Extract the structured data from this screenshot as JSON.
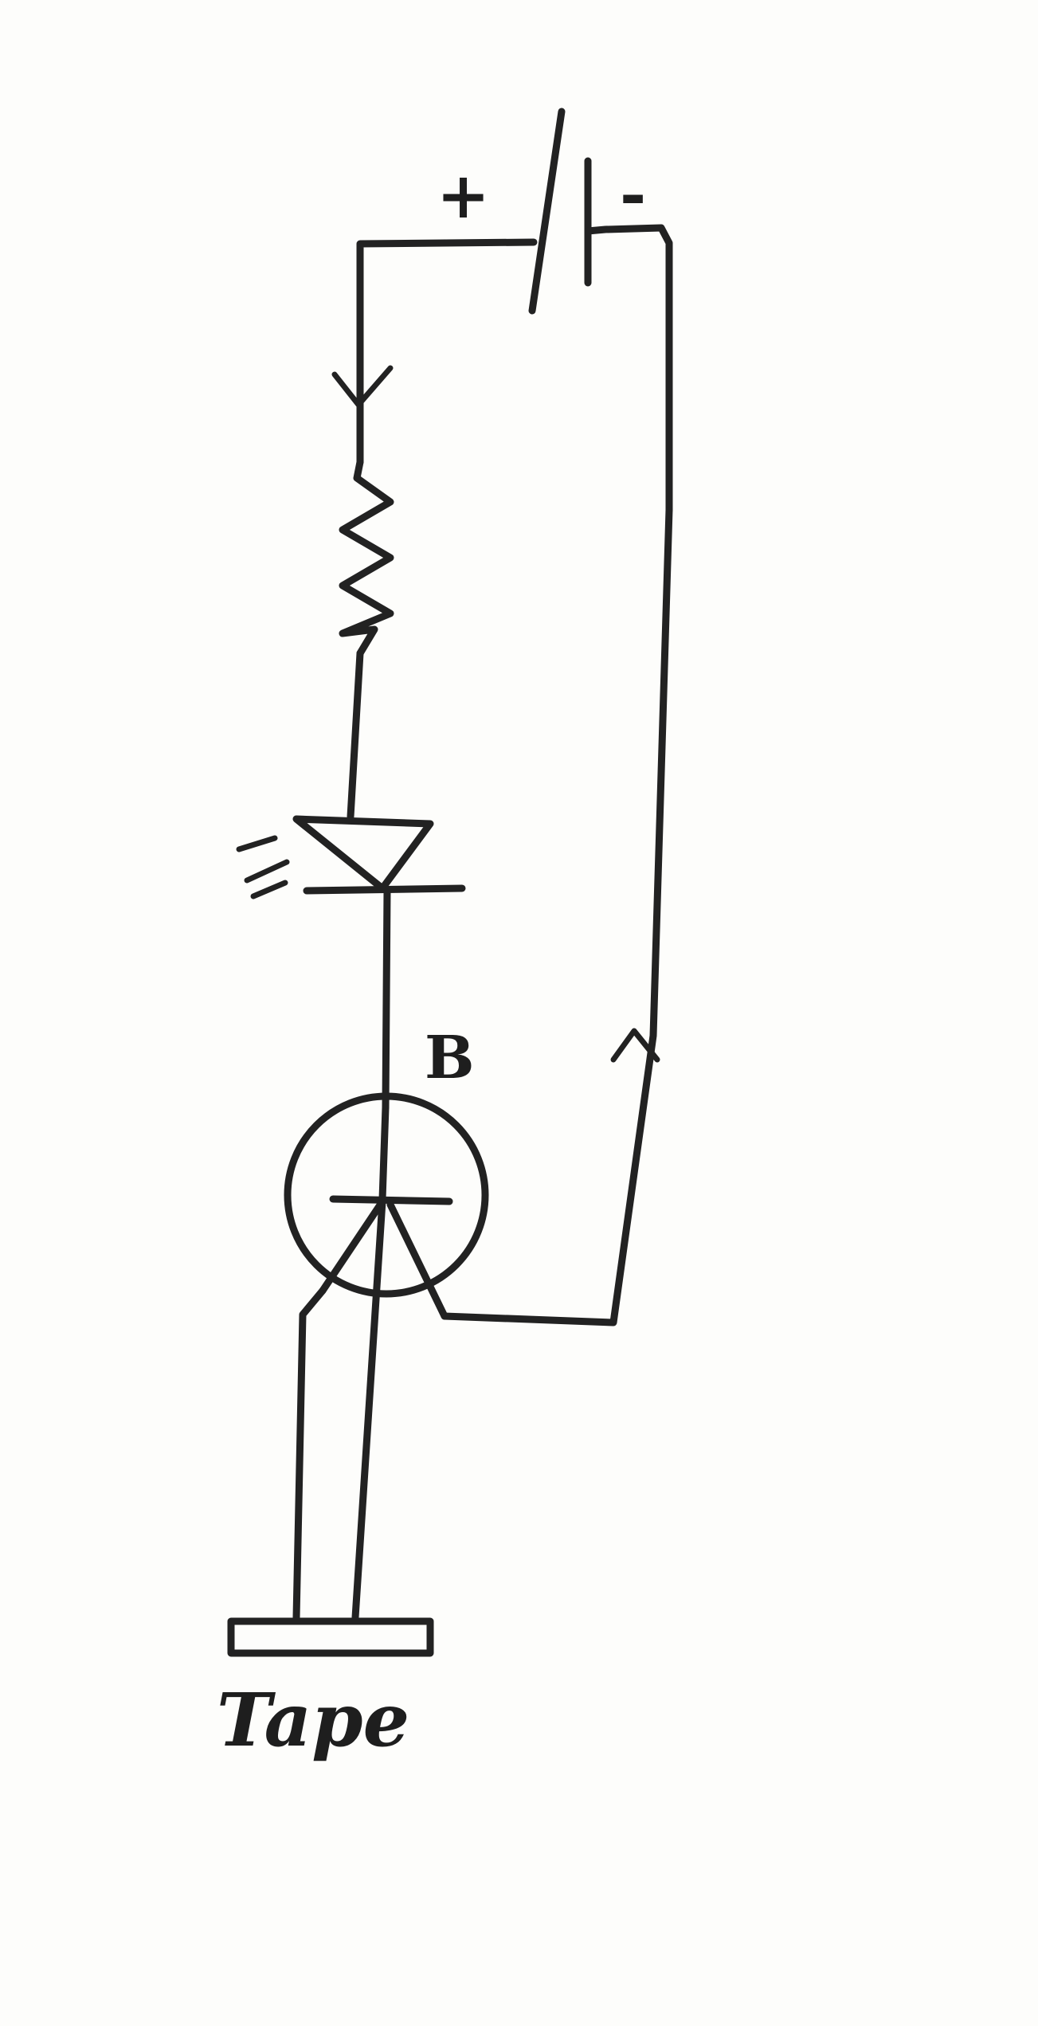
{
  "diagram": {
    "labels": {
      "battery_positive": "+",
      "battery_negative": "-",
      "transistor_base": "B",
      "tape": "Tape"
    },
    "components": [
      "battery-icon",
      "resistor-icon",
      "led-icon",
      "transistor-icon",
      "tape-pad-icon"
    ],
    "current_direction_markers": [
      "arrow-down-icon",
      "arrow-up-icon"
    ],
    "ink_color": "#222222",
    "paper_color": "#fdfdfb"
  }
}
